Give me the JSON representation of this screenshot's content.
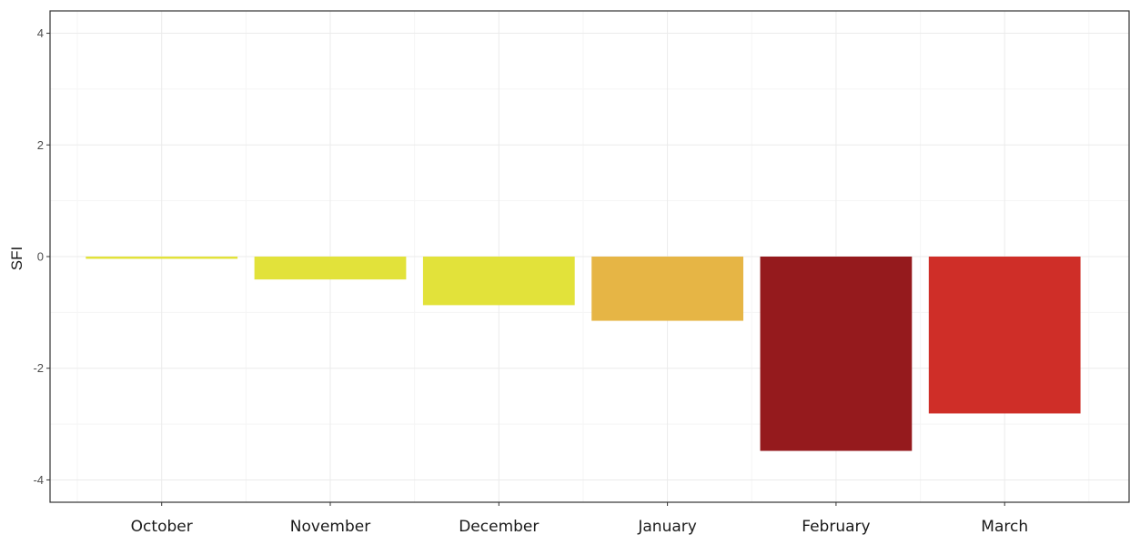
{
  "chart_data": {
    "type": "bar",
    "categories": [
      "October",
      "November",
      "December",
      "January",
      "February",
      "March"
    ],
    "values": [
      -0.04,
      -0.41,
      -0.87,
      -1.15,
      -3.48,
      -2.81
    ],
    "colors": [
      "#e2e23a",
      "#e2e23a",
      "#e2e23a",
      "#e6b545",
      "#951a1d",
      "#cf2e28"
    ],
    "title": "",
    "xlabel": "",
    "ylabel": "SFI",
    "ylim": [
      -4.4,
      4.4
    ],
    "yticks": [
      -4,
      -2,
      0,
      2,
      4
    ],
    "grid": true,
    "legend": "none",
    "panel_border_color": "#333333",
    "grid_major_color": "#ebebeb",
    "grid_minor_color": "#f5f5f5"
  }
}
